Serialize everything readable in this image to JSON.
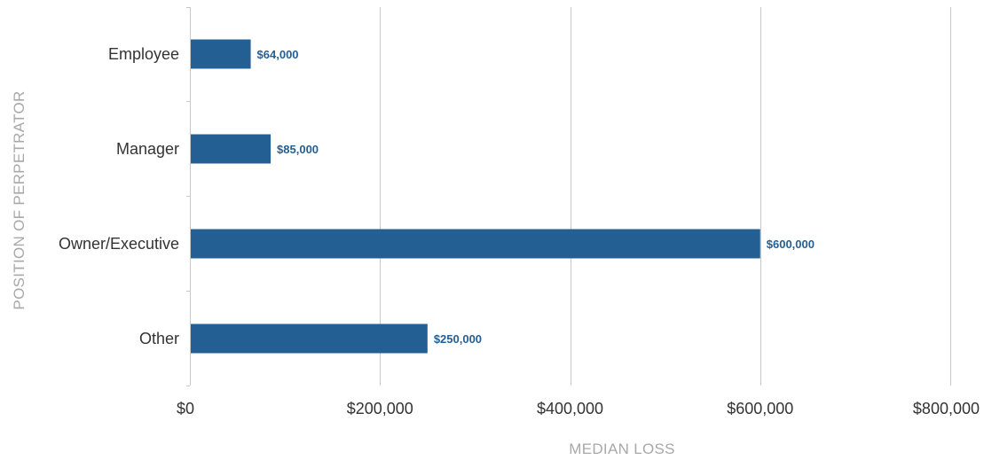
{
  "chart_data": {
    "type": "bar",
    "orientation": "horizontal",
    "categories": [
      "Employee",
      "Manager",
      "Owner/Executive",
      "Other"
    ],
    "values": [
      64000,
      85000,
      600000,
      250000
    ],
    "data_labels": [
      "$64,000",
      "$85,000",
      "$600,000",
      "$250,000"
    ],
    "xlabel": "MEDIAN LOSS",
    "ylabel": "POSITION OF PERPETRATOR",
    "xlim": [
      0,
      800000
    ],
    "x_ticks": [
      0,
      200000,
      400000,
      600000,
      800000
    ],
    "x_tick_labels": [
      "$0",
      "$200,000",
      "$400,000",
      "$600,000",
      "$800,000"
    ],
    "grid": "vertical",
    "legend": "none"
  },
  "colors": {
    "bar": "#245f94",
    "data_label": "#245f94",
    "grid": "#c8c8c8",
    "axis": "#c8c8c8",
    "text": "#333333",
    "axis_title": "#a8a8a8"
  }
}
